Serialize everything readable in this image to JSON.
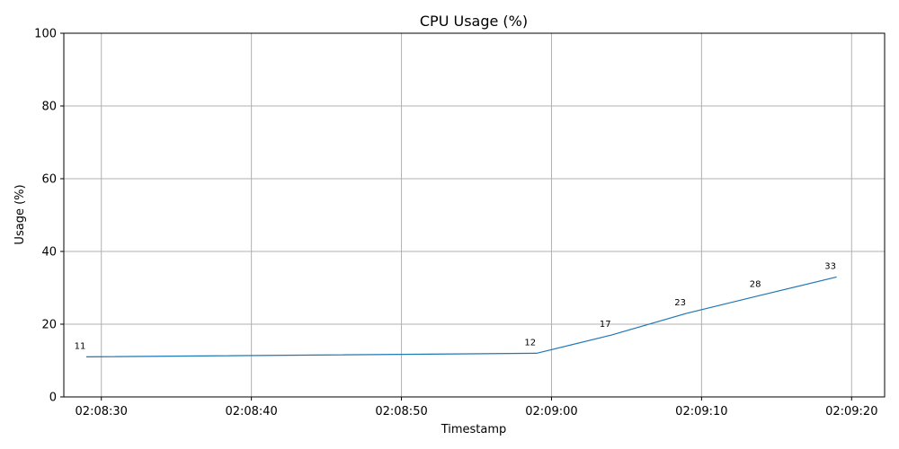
{
  "chart_data": {
    "type": "line",
    "title": "CPU Usage (%)",
    "xlabel": "Timestamp",
    "ylabel": "Usage (%)",
    "x": [
      "02:08:29",
      "02:08:59",
      "02:09:04",
      "02:09:09",
      "02:09:14",
      "02:09:19"
    ],
    "values": [
      11,
      12,
      17,
      23,
      28,
      33
    ],
    "data_labels": [
      "11",
      "12",
      "17",
      "23",
      "28",
      "33"
    ],
    "ylim": [
      0,
      100
    ],
    "xlim": [
      "02:08:27.5",
      "02:09:22.2"
    ],
    "yticks": [
      0,
      20,
      40,
      60,
      80,
      100
    ],
    "ytick_labels": [
      "0",
      "20",
      "40",
      "60",
      "80",
      "100"
    ],
    "xticks": [
      "02:08:30",
      "02:08:40",
      "02:08:50",
      "02:09:00",
      "02:09:10",
      "02:09:20"
    ],
    "xtick_labels": [
      "02:08:30",
      "02:08:40",
      "02:08:50",
      "02:09:00",
      "02:09:10",
      "02:09:20"
    ],
    "grid": true,
    "line_color": "#1f77b4"
  }
}
